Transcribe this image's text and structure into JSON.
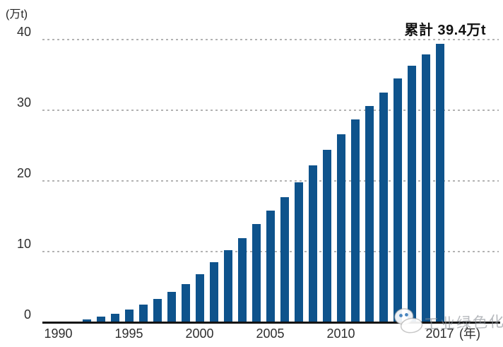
{
  "chart_data": {
    "type": "bar",
    "title": "",
    "unit_label": "(万t)",
    "annotation": "累計 39.4万t",
    "x_axis_unit_label": "(年)",
    "x_tick_years": [
      1990,
      1995,
      2000,
      2005,
      2010,
      2017
    ],
    "y_ticks": [
      0,
      10,
      20,
      30,
      40
    ],
    "ylim": [
      0,
      40
    ],
    "years": [
      1992,
      1993,
      1994,
      1995,
      1996,
      1997,
      1998,
      1999,
      2000,
      2001,
      2002,
      2003,
      2004,
      2005,
      2006,
      2007,
      2008,
      2009,
      2010,
      2011,
      2012,
      2013,
      2014,
      2015,
      2016,
      2017
    ],
    "values": [
      0.4,
      0.8,
      1.2,
      1.8,
      2.5,
      3.3,
      4.3,
      5.4,
      6.8,
      8.5,
      10.2,
      11.9,
      13.9,
      15.8,
      17.7,
      19.8,
      22.2,
      24.4,
      26.6,
      28.7,
      30.6,
      32.5,
      34.5,
      36.3,
      37.9,
      39.4
    ],
    "bar_color": "#0E538C",
    "gridline_color": "#b3b3b3",
    "axis_color": "#141414",
    "legend": "none",
    "grid": "horizontal-dotted"
  },
  "watermark": {
    "icon": "mascot-logo-icon",
    "text": "工业绿色化"
  }
}
